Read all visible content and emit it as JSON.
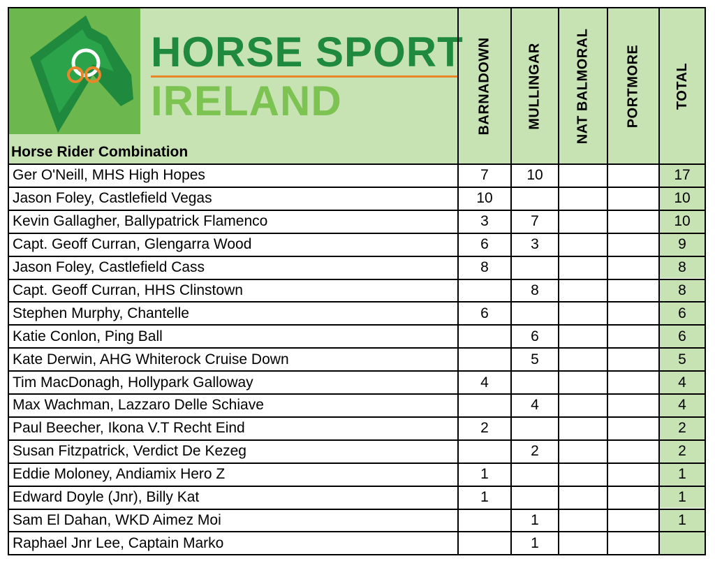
{
  "brand": {
    "line1": "HORSE SPORT",
    "line2": "IRELAND",
    "logo": "horse-head-logo"
  },
  "header": {
    "combination_label": "Horse Rider Combination",
    "columns": [
      "BARNADOWN",
      "MULLINGAR",
      "NAT BALMORAL",
      "PORTMORE",
      "TOTAL"
    ]
  },
  "colors": {
    "header_bg": "#c8e3b3",
    "brand_dark_green": "#1f8a3d",
    "brand_light_green": "#7cc352",
    "brand_orange": "#e8862a"
  },
  "rows": [
    {
      "name": "Ger O'Neill, MHS High Hopes",
      "barnadown": "7",
      "mullingar": "10",
      "nat_balmoral": "",
      "portmore": "",
      "total": "17"
    },
    {
      "name": "Jason Foley, Castlefield Vegas",
      "barnadown": "10",
      "mullingar": "",
      "nat_balmoral": "",
      "portmore": "",
      "total": "10"
    },
    {
      "name": "Kevin Gallagher, Ballypatrick Flamenco",
      "barnadown": "3",
      "mullingar": "7",
      "nat_balmoral": "",
      "portmore": "",
      "total": "10"
    },
    {
      "name": "Capt. Geoff Curran, Glengarra Wood",
      "barnadown": "6",
      "mullingar": "3",
      "nat_balmoral": "",
      "portmore": "",
      "total": "9"
    },
    {
      "name": "Jason Foley, Castlefield Cass",
      "barnadown": "8",
      "mullingar": "",
      "nat_balmoral": "",
      "portmore": "",
      "total": "8"
    },
    {
      "name": "Capt. Geoff Curran, HHS Clinstown",
      "barnadown": "",
      "mullingar": "8",
      "nat_balmoral": "",
      "portmore": "",
      "total": "8"
    },
    {
      "name": "Stephen Murphy, Chantelle",
      "barnadown": "6",
      "mullingar": "",
      "nat_balmoral": "",
      "portmore": "",
      "total": "6"
    },
    {
      "name": "Katie Conlon, Ping Ball",
      "barnadown": "",
      "mullingar": "6",
      "nat_balmoral": "",
      "portmore": "",
      "total": "6"
    },
    {
      "name": "Kate Derwin, AHG Whiterock Cruise Down",
      "barnadown": "",
      "mullingar": "5",
      "nat_balmoral": "",
      "portmore": "",
      "total": "5"
    },
    {
      "name": "Tim MacDonagh, Hollypark Galloway",
      "barnadown": "4",
      "mullingar": "",
      "nat_balmoral": "",
      "portmore": "",
      "total": "4"
    },
    {
      "name": "Max Wachman, Lazzaro Delle Schiave",
      "barnadown": "",
      "mullingar": "4",
      "nat_balmoral": "",
      "portmore": "",
      "total": "4"
    },
    {
      "name": "Paul Beecher, Ikona V.T Recht Eind",
      "barnadown": "2",
      "mullingar": "",
      "nat_balmoral": "",
      "portmore": "",
      "total": "2"
    },
    {
      "name": "Susan Fitzpatrick, Verdict De Kezeg",
      "barnadown": "",
      "mullingar": "2",
      "nat_balmoral": "",
      "portmore": "",
      "total": "2"
    },
    {
      "name": "Eddie Moloney, Andiamix Hero Z",
      "barnadown": "1",
      "mullingar": "",
      "nat_balmoral": "",
      "portmore": "",
      "total": "1"
    },
    {
      "name": "Edward Doyle (Jnr), Billy Kat",
      "barnadown": "1",
      "mullingar": "",
      "nat_balmoral": "",
      "portmore": "",
      "total": "1"
    },
    {
      "name": "Sam El Dahan, WKD Aimez Moi",
      "barnadown": "",
      "mullingar": "1",
      "nat_balmoral": "",
      "portmore": "",
      "total": "1"
    },
    {
      "name": "Raphael Jnr Lee, Captain Marko",
      "barnadown": "",
      "mullingar": "1",
      "nat_balmoral": "",
      "portmore": "",
      "total": ""
    }
  ]
}
